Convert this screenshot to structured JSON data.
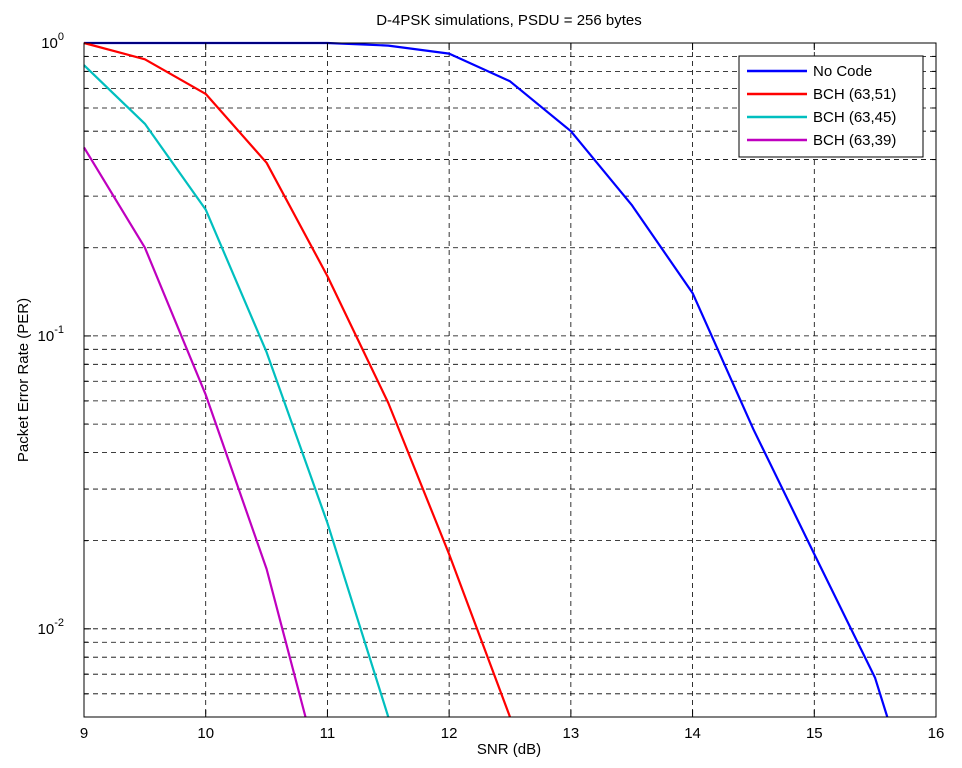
{
  "chart_data": {
    "type": "line",
    "title": "D-4PSK simulations, PSDU = 256 bytes",
    "xlabel": "SNR (dB)",
    "ylabel": "Packet Error Rate (PER)",
    "xlim": [
      9,
      16
    ],
    "ylim": [
      0.005,
      1
    ],
    "yscale": "log",
    "grid": true,
    "legend_position": "top-right",
    "x_ticks": [
      "9",
      "10",
      "11",
      "12",
      "13",
      "14",
      "15",
      "16"
    ],
    "y_ticks": [
      {
        "base": "10",
        "exp": "0",
        "value": 1
      },
      {
        "base": "10",
        "exp": "-1",
        "value": 0.1
      },
      {
        "base": "10",
        "exp": "-2",
        "value": 0.01
      }
    ],
    "series": [
      {
        "name": "No Code",
        "color": "#0000ff",
        "x": [
          9,
          9.5,
          10,
          10.5,
          11,
          11.5,
          12,
          12.5,
          13,
          13.5,
          14,
          14.5,
          15,
          15.5,
          15.6
        ],
        "values": [
          1.0,
          1.0,
          1.0,
          1.0,
          1.0,
          0.98,
          0.92,
          0.74,
          0.5,
          0.28,
          0.14,
          0.048,
          0.018,
          0.0068,
          0.005
        ]
      },
      {
        "name": "BCH (63,51)",
        "color": "#ff0000",
        "x": [
          9,
          9.5,
          10,
          10.5,
          11,
          11.5,
          12,
          12.5
        ],
        "values": [
          1.0,
          0.88,
          0.67,
          0.39,
          0.16,
          0.059,
          0.018,
          0.005
        ]
      },
      {
        "name": "BCH (63,45)",
        "color": "#00bfbf",
        "x": [
          9,
          9.5,
          10,
          10.5,
          11,
          11.5
        ],
        "values": [
          0.84,
          0.53,
          0.27,
          0.088,
          0.023,
          0.005
        ]
      },
      {
        "name": "BCH (63,39)",
        "color": "#bf00bf",
        "x": [
          9,
          9.5,
          10,
          10.5,
          10.82
        ],
        "values": [
          0.44,
          0.2,
          0.063,
          0.016,
          0.005
        ]
      }
    ]
  }
}
